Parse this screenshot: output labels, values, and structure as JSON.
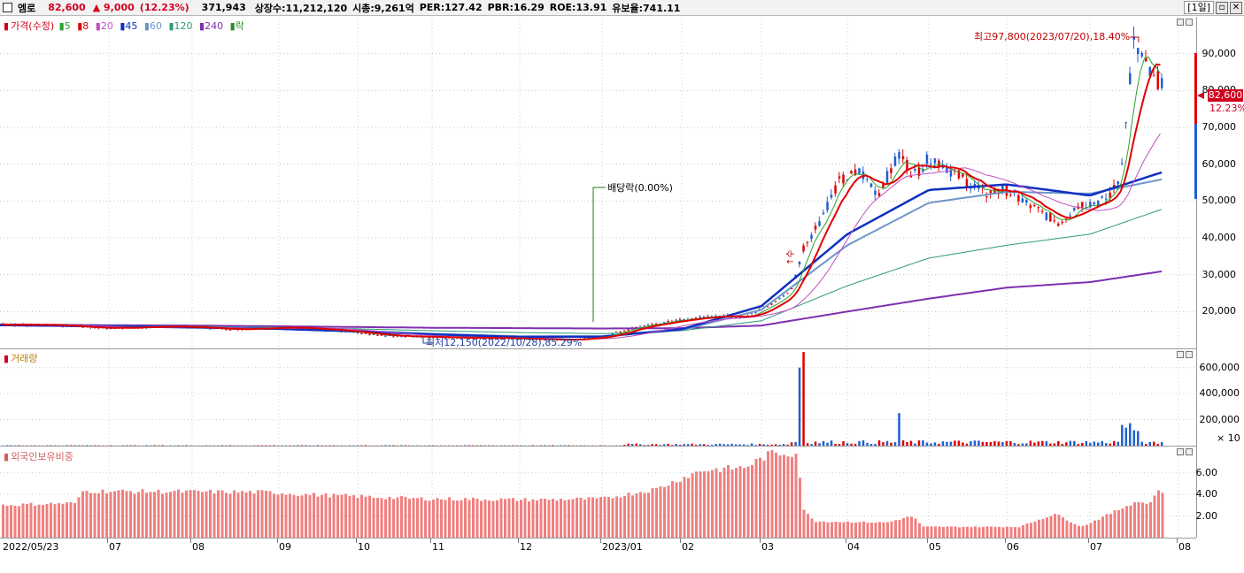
{
  "header": {
    "name": "엠로",
    "price": "82,600",
    "change": "▲ 9,000",
    "change_pct": "(12.23%)",
    "volume": "371,943",
    "shares": "상장수:11,212,120",
    "mcap": "시총:9,261억",
    "per": "PER:127.42",
    "pbr": "PBR:16.29",
    "roe": "ROE:13.91",
    "reserve": "유보율:741.11",
    "period": "[1일]"
  },
  "legend_price": {
    "label": "가격(수정)",
    "ma5": "5",
    "ma8": "8",
    "ma20": "20",
    "ma45": "45",
    "ma60": "60",
    "ma120": "120",
    "ma240": "240",
    "rak": "락"
  },
  "legend_volume": "거래량",
  "legend_foreign": "외국인보유비중",
  "annotations": {
    "high": "최고97,800(2023/07/20),18.40%",
    "low": "최저12,150(2022/10/28),85.29%",
    "dividend": "배당락(0.00%)",
    "up": "↑수"
  },
  "price_tag": "82,600",
  "price_tag_pct": "12.23%",
  "volume_unit": "× 10",
  "colors": {
    "up": "#e00000",
    "down": "#1f5fd0",
    "ma5": "#2ca02c",
    "ma8": "#e00000",
    "ma20": "#c050c0",
    "ma45": "#1030c0",
    "ma60": "#6f95c8",
    "ma120": "#2f9a7a",
    "ma240": "#7f2fb0",
    "foreign": "#f08080"
  },
  "chart_data": [
    {
      "type": "line",
      "title": "가격(수정)",
      "yticks": [
        "90,000",
        "80,000",
        "70,000",
        "60,000",
        "50,000",
        "40,000",
        "30,000",
        "20,000"
      ],
      "ylim": [
        10000,
        100000
      ],
      "x": [
        "2022/05/23",
        "07",
        "08",
        "09",
        "10",
        "11",
        "12",
        "2023/01",
        "02",
        "03",
        "04",
        "05",
        "06",
        "07",
        "08"
      ],
      "close_approx": [
        16500,
        16200,
        16000,
        15500,
        14500,
        13200,
        12500,
        13500,
        17500,
        26000,
        55000,
        59000,
        46000,
        74000,
        82600
      ],
      "ma240_approx": [
        16500,
        16300,
        16200,
        16000,
        15800,
        15600,
        15500,
        15400,
        15500,
        16200,
        20000,
        23500,
        26500,
        28000,
        31000
      ],
      "ma120_approx": [
        16400,
        16200,
        16000,
        15700,
        15300,
        14800,
        14300,
        14000,
        14800,
        17500,
        27000,
        34500,
        38000,
        41000,
        48000
      ],
      "ma60_approx": [
        16300,
        16100,
        15800,
        15400,
        14800,
        14000,
        13300,
        13300,
        15000,
        20500,
        38000,
        49500,
        52500,
        52000,
        56000
      ],
      "ma45_approx": [
        16300,
        16000,
        15700,
        15300,
        14600,
        13800,
        13100,
        13200,
        15200,
        21500,
        41000,
        53000,
        54500,
        51500,
        58000
      ]
    },
    {
      "type": "bar",
      "title": "거래량",
      "yticks": [
        "600,000",
        "400,000",
        "200,000"
      ],
      "ylim": [
        0,
        720000
      ],
      "peak": 720000
    },
    {
      "type": "bar",
      "title": "외국인보유비중",
      "yticks": [
        "6.00",
        "4.00",
        "2.00"
      ],
      "ylim": [
        0,
        8.5
      ],
      "x": [
        "2022/05/23",
        "07",
        "08",
        "09",
        "10",
        "11",
        "12",
        "2023/01",
        "02",
        "03",
        "04",
        "05",
        "06",
        "07",
        "08"
      ],
      "values_approx": [
        3.0,
        4.1,
        4.2,
        4.1,
        3.9,
        3.8,
        3.5,
        3.7,
        4.6,
        7.8,
        1.4,
        1.2,
        1.1,
        3.2,
        4.2
      ]
    }
  ],
  "x_labels": [
    "2022/05/23",
    "07",
    "08",
    "09",
    "10",
    "11",
    "12",
    "2023/01",
    "02",
    "03",
    "04",
    "05",
    "06",
    "07",
    "08"
  ]
}
